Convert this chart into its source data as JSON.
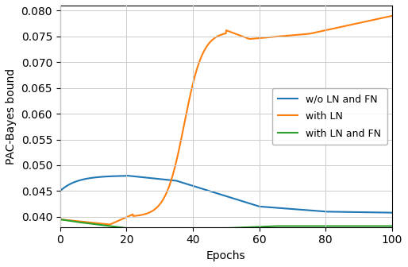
{
  "xlabel": "Epochs",
  "ylabel": "PAC-Bayes bound",
  "xlim": [
    0,
    100
  ],
  "ylim": [
    0.038,
    0.081
  ],
  "yticks": [
    0.04,
    0.045,
    0.05,
    0.055,
    0.06,
    0.065,
    0.07,
    0.075,
    0.08
  ],
  "xticks": [
    0,
    20,
    40,
    60,
    80,
    100
  ],
  "line1_color": "#1f77b4",
  "line2_color": "#ff7f0e",
  "line3_color": "#2ca02c",
  "line1_label": "w/o LN and FN",
  "line2_label": "with LN",
  "line3_label": "with LN and FN",
  "legend_loc": "center right",
  "figsize": [
    5.14,
    3.36
  ],
  "dpi": 100
}
